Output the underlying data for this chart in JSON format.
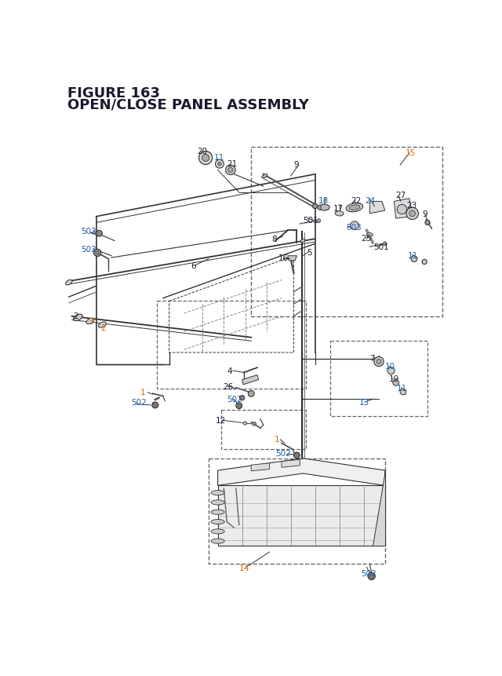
{
  "title_line1": "FIGURE 163",
  "title_line2": "OPEN/CLOSE PANEL ASSEMBLY",
  "bg_color": "#ffffff",
  "lc": "#333333",
  "bk": "#1a1a2e",
  "bc": "#1e5fa8",
  "oc": "#d46b00",
  "dc": "#666677"
}
